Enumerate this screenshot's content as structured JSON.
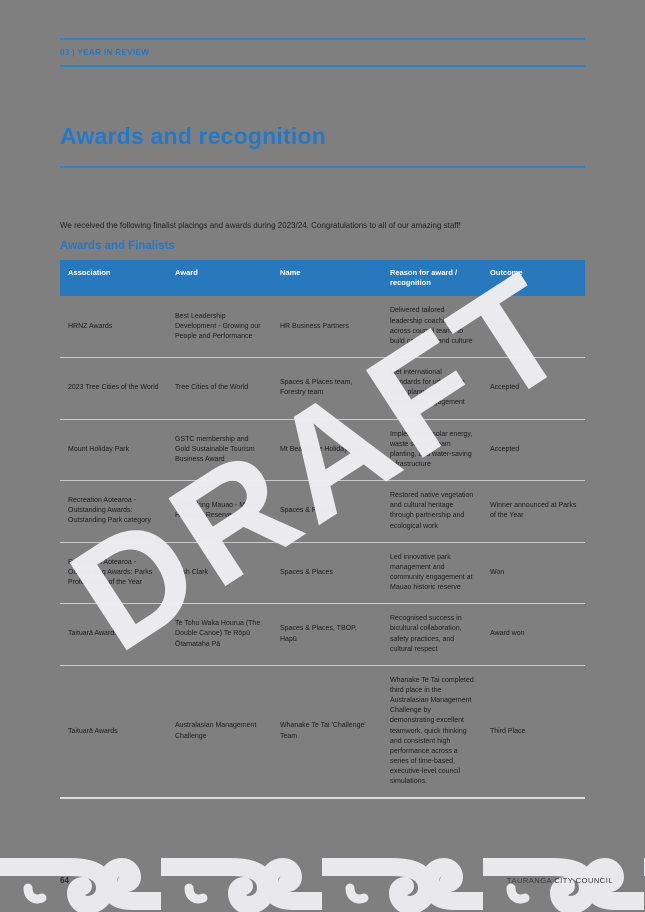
{
  "page": {
    "header_label": "03 | YEAR IN REVIEW",
    "title": "Awards and recognition",
    "intro": "We received the following finalist placings and awards during 2023/24. Congratulations to all of our amazing staff!",
    "section_title": "Awards and Finalists",
    "watermark": "DRAFT",
    "footer": {
      "page_number": "64",
      "org": "TAURANGA CITY COUNCIL"
    }
  },
  "colors": {
    "page_background": "#7f7f7f",
    "accent_blue": "#2478c8",
    "table_header_background": "#2878be",
    "watermark_white": "#efeff1",
    "koru_light_gray": "#e9e9eb"
  },
  "table": {
    "columns": [
      "Association",
      "Award",
      "Name",
      "Reason for award / recognition",
      "Outcome"
    ],
    "rows": [
      {
        "association": "HRNZ Awards",
        "award": "Best Leadership Development - Growing our People and Performance",
        "name": "HR Business Partners",
        "reason": "Delivered tailored leadership coaching across council teams to build capability and culture",
        "outcome": "Finalist"
      },
      {
        "association": "2023 Tree Cities of the World",
        "award": "Tree Cities of the World",
        "name": "Spaces & Places team, Forestry team",
        "reason": "Met international standards for urban tree care, planning, and community engagement",
        "outcome": "Accepted"
      },
      {
        "association": "Mount Holiday Park",
        "award": "GSTC membership and Gold Sustainable Tourism Business Award",
        "name": "Mt Beachside Holiday Park",
        "reason": "Implemented solar energy, waste sorting, team planting, and water-saving infrastructure",
        "outcome": "Accepted"
      },
      {
        "association": "Recreation Aotearoa - Outstanding Awards: Outstanding Park category",
        "award": "Recloaking Mauao - Mauao Historical Reserve",
        "name": "Spaces & Places",
        "reason": "Restored native vegetation and cultural heritage through partnership and ecological work",
        "outcome": "Winner announced at Parks of the Year"
      },
      {
        "association": "Recreation Aotearoa - Outstanding Awards: Parks Professional of the Year",
        "award": "Josh Clark",
        "name": "Spaces & Places",
        "reason": "Led innovative park management and community engagement at Mauao historic reserve",
        "outcome": "Won"
      },
      {
        "association": "Taituarā Awards",
        "award": "Te Tohu Waka Hourua (The Double Canoe) Te Rōpū Ōtamataha Pā",
        "name": "Spaces & Places, TBOP, Hapū",
        "reason": "Recognised success in bicultural collaboration, safety practices, and cultural respect",
        "outcome": "Award won"
      },
      {
        "association": "Taituarā Awards",
        "award": "Australasian Management Challenge",
        "name": "Whanake Te Tai 'Challenge' Team",
        "reason": "Whanake Te Tai completed third place in the Australasian Management Challenge by demonstrating excellent teamwork, quick thinking and consistent high performance across a series of time-based, executive-level council simulations.",
        "outcome": "Third Place"
      }
    ]
  }
}
